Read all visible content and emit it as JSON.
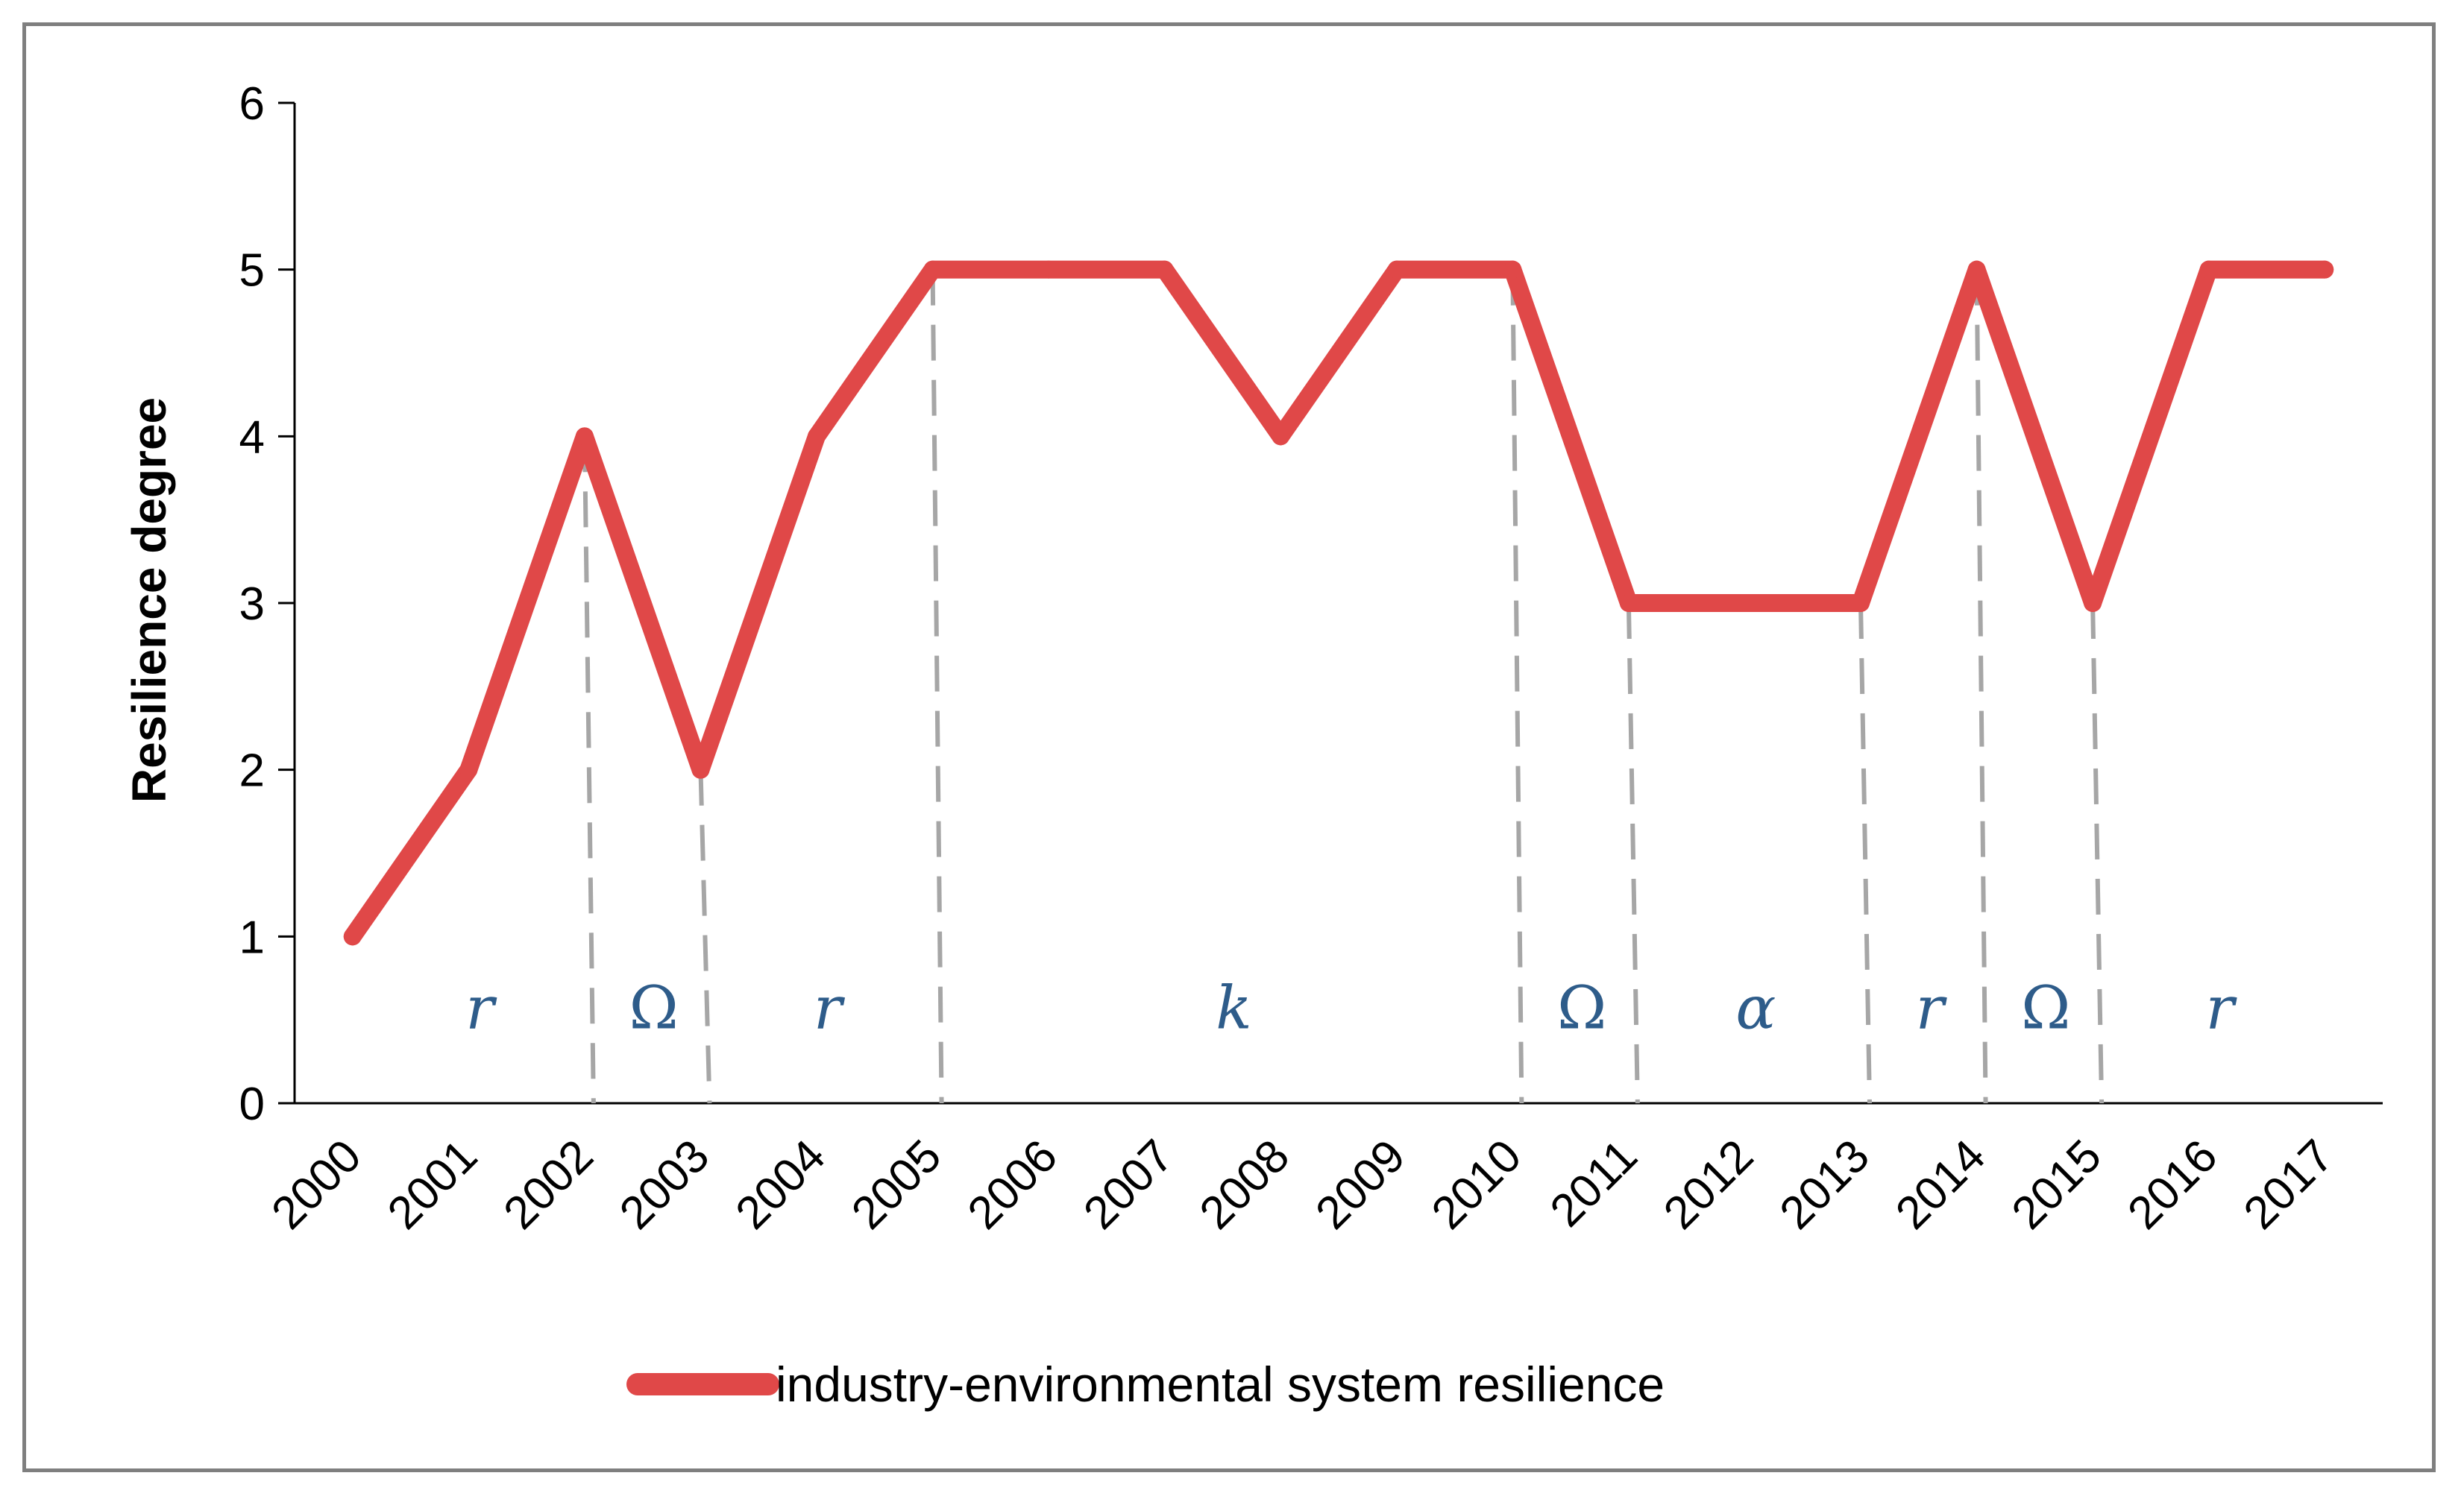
{
  "chart_data": {
    "type": "line",
    "title": "",
    "xlabel": "",
    "ylabel": "Resilience degree",
    "ylim": [
      0,
      6
    ],
    "yticks": [
      0,
      1,
      2,
      3,
      4,
      5,
      6
    ],
    "categories": [
      "2000",
      "2001",
      "2002",
      "2003",
      "2004",
      "2005",
      "2006",
      "2007",
      "2008",
      "2009",
      "2010",
      "2011",
      "2012",
      "2013",
      "2014",
      "2015",
      "2016",
      "2017"
    ],
    "series": [
      {
        "name": "industry-environmental system resilience",
        "color": "#e04848",
        "values": [
          1,
          2,
          4,
          2,
          4,
          5,
          5,
          5,
          4,
          5,
          5,
          3,
          3,
          3,
          5,
          3,
          5,
          5
        ]
      }
    ],
    "phase_boundaries": [
      2002,
      2003,
      2005,
      2010,
      2011,
      2013,
      2014,
      2015
    ],
    "phase_labels": [
      {
        "label": "r",
        "start": 2000,
        "end": 2002
      },
      {
        "label": "Ω",
        "start": 2002,
        "end": 2003
      },
      {
        "label": "r",
        "start": 2003,
        "end": 2005
      },
      {
        "label": "k",
        "start": 2005,
        "end": 2010
      },
      {
        "label": "Ω",
        "start": 2010,
        "end": 2011
      },
      {
        "label": "α",
        "start": 2011,
        "end": 2013
      },
      {
        "label": "r",
        "start": 2013,
        "end": 2014
      },
      {
        "label": "Ω",
        "start": 2014,
        "end": 2015
      },
      {
        "label": "r",
        "start": 2015,
        "end": 2017
      }
    ],
    "legend": {
      "position": "bottom-center",
      "entries": [
        "industry-environmental system resilience"
      ]
    },
    "grid": false
  }
}
